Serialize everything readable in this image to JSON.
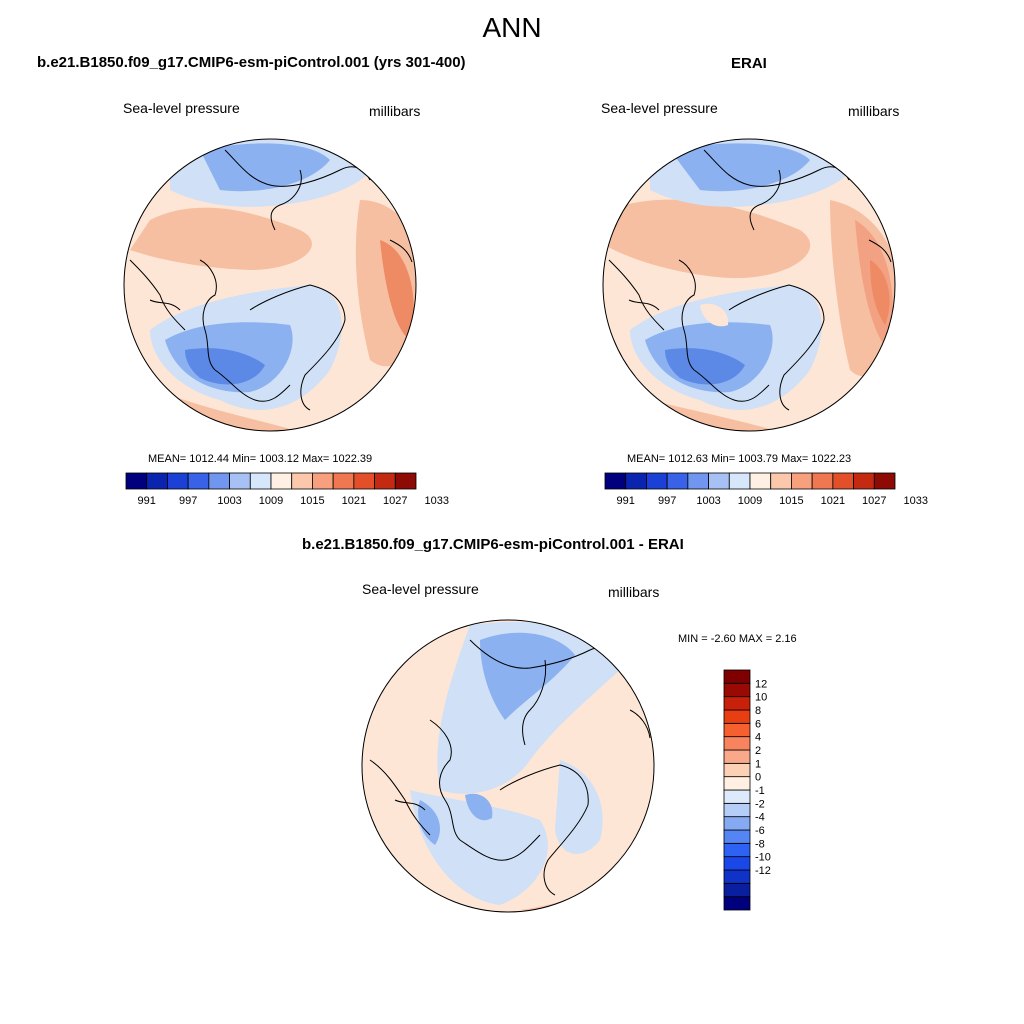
{
  "figure": {
    "title": "ANN"
  },
  "panels": [
    {
      "title": "b.e21.B1850.f09_g17.CMIP6-esm-piControl.001 (yrs 301-400)",
      "variable": "Sea-level pressure",
      "units": "millibars",
      "stats": "MEAN= 1012.44  Min= 1003.12  Max= 1022.39"
    },
    {
      "title": "ERAI",
      "variable": "Sea-level pressure",
      "units": "millibars",
      "stats": "MEAN= 1012.63  Min= 1003.79  Max= 1022.23"
    },
    {
      "title": "b.e21.B1850.f09_g17.CMIP6-esm-piControl.001 - ERAI",
      "variable": "Sea-level pressure",
      "units": "millibars",
      "stats": "MIN =  -2.60 MAX =   2.16"
    }
  ],
  "colorbars": {
    "field": {
      "orientation": "horizontal",
      "colors": [
        "#00007f",
        "#0a24b0",
        "#1c3fd6",
        "#3a62e8",
        "#7096ef",
        "#a7c1f5",
        "#d6e6fb",
        "#fff0e3",
        "#fbc8ac",
        "#f7a07e",
        "#f07850",
        "#e24f28",
        "#c42a12",
        "#8e0a04"
      ],
      "labels": [
        "991",
        "997",
        "1003",
        "1009",
        "1015",
        "1021",
        "1027",
        "1033"
      ]
    },
    "difference": {
      "orientation": "vertical",
      "colors": [
        "#00007f",
        "#0a1fa0",
        "#0f32c8",
        "#1a48e8",
        "#2e62f5",
        "#5585f5",
        "#86a9f4",
        "#b6cdf7",
        "#dceafb",
        "#fff0e3",
        "#fcd0b4",
        "#f9a98a",
        "#f8845f",
        "#f5602e",
        "#e83e12",
        "#c8200a",
        "#9a0a04",
        "#7f0000"
      ],
      "labels": [
        "12",
        "10",
        "8",
        "6",
        "4",
        "2",
        "1",
        "0",
        "-1",
        "-2",
        "-4",
        "-6",
        "-8",
        "-10",
        "-12"
      ]
    }
  },
  "palette": {
    "coastline": "#000000",
    "neutral_warm": "#fde6d6",
    "pale_blue": "#cfe0f7",
    "mid_blue": "#8cb1f0",
    "deep_blue": "#5c88e6",
    "light_red": "#f6bfa2",
    "mid_red": "#f2a283",
    "strong_red": "#ee8a64"
  }
}
